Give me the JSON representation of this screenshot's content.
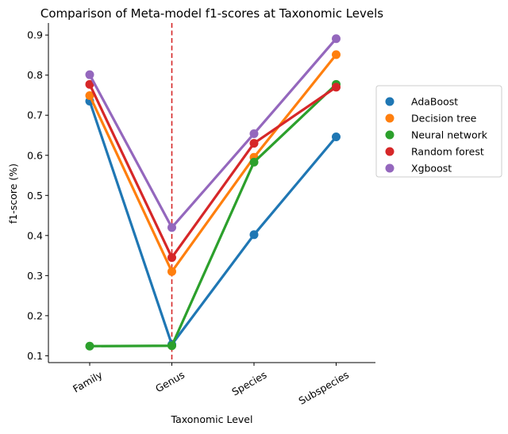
{
  "chart_data": {
    "type": "line",
    "title": "Comparison of Meta-model f1-scores at Taxonomic Levels",
    "xlabel": "Taxonomic Level",
    "ylabel": "f1-score (%)",
    "categories": [
      "Family",
      "Genus",
      "Species",
      "Subspecies"
    ],
    "ylim": [
      0.083,
      0.93
    ],
    "yticks": [
      "0.1",
      "0.2",
      "0.3",
      "0.4",
      "0.5",
      "0.6",
      "0.7",
      "0.8",
      "0.9"
    ],
    "grid": false,
    "legend_position": "right",
    "reference_line": {
      "category": "Genus",
      "color": "#d62728",
      "style": "dashed"
    },
    "series": [
      {
        "name": "AdaBoost",
        "color": "#1f77b4",
        "values": [
          0.735,
          0.128,
          0.402,
          0.646
        ]
      },
      {
        "name": "Decision tree",
        "color": "#ff7f0e",
        "values": [
          0.749,
          0.31,
          0.595,
          0.851
        ]
      },
      {
        "name": "Neural network",
        "color": "#2ca02c",
        "values": [
          0.124,
          0.125,
          0.583,
          0.777
        ]
      },
      {
        "name": "Random forest",
        "color": "#d62728",
        "values": [
          0.777,
          0.345,
          0.63,
          0.77
        ]
      },
      {
        "name": "Xgboost",
        "color": "#9467bd",
        "values": [
          0.801,
          0.42,
          0.654,
          0.891
        ]
      }
    ]
  }
}
